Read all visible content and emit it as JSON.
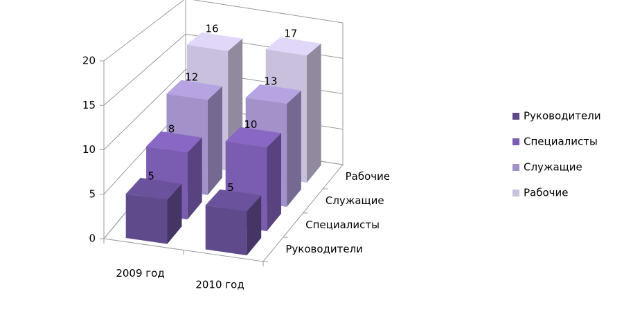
{
  "chart_data": {
    "type": "bar3d",
    "categories": [
      "2009 год",
      "2010 год"
    ],
    "series": [
      {
        "name": "Руководители",
        "color": "#5f4a8b",
        "values": [
          5,
          5
        ]
      },
      {
        "name": "Специалисты",
        "color": "#7a5cb0",
        "values": [
          8,
          10
        ]
      },
      {
        "name": "Служащие",
        "color": "#a292c9",
        "values": [
          12,
          13
        ]
      },
      {
        "name": "Рабочие",
        "color": "#c9c0dd",
        "values": [
          16,
          17
        ]
      }
    ],
    "ylim": [
      0,
      20
    ],
    "yticks": [
      0,
      5,
      10,
      15,
      20
    ],
    "grid": true,
    "legend": "right"
  }
}
